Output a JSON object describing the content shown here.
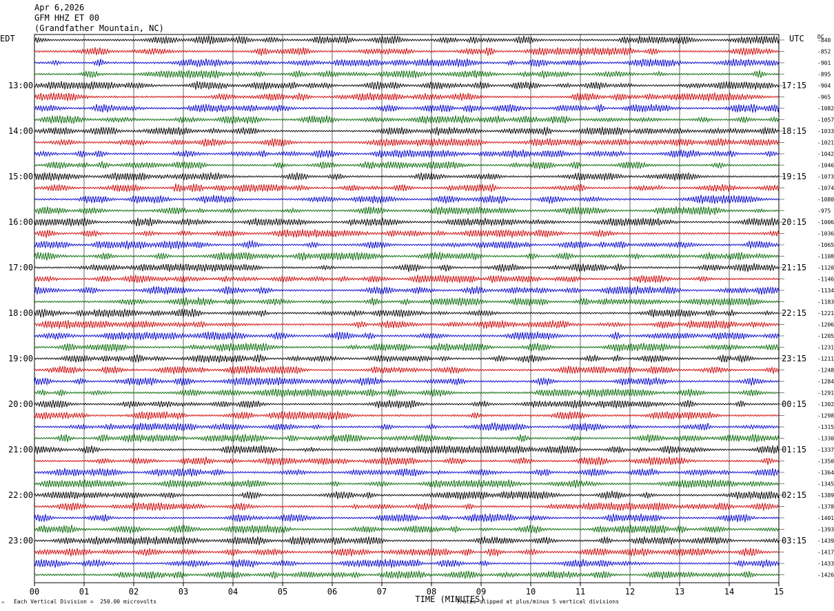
{
  "header": {
    "date": "Apr 6,2026",
    "station": "GFM HHZ ET 00",
    "location": "(Grandfather Mountain, NC)"
  },
  "labels": {
    "left_tz": "EDT",
    "right_tz": "UTC",
    "dc": "DC"
  },
  "footer": {
    "scale_note": "Each Vertical Division =  250.00 microvolts",
    "clip_note": "Traces clipped at plus/minus 5 vertical divisions",
    "mark": "^"
  },
  "chart_data": {
    "type": "line",
    "title": "",
    "xlabel": "TIME (MINUTES)",
    "xlim": [
      0,
      15
    ],
    "x_ticks": [
      "00",
      "01",
      "02",
      "03",
      "04",
      "05",
      "06",
      "07",
      "08",
      "09",
      "10",
      "11",
      "12",
      "13",
      "14",
      "15"
    ],
    "grid": true,
    "trace_colors": [
      "#000000",
      "#cc0000",
      "#0000cc",
      "#006600"
    ],
    "left_hour_labels": [
      "13:00",
      "14:00",
      "15:00",
      "16:00",
      "17:00",
      "18:00",
      "19:00",
      "20:00",
      "21:00",
      "22:00",
      "23:00"
    ],
    "right_hour_labels": [
      "17:15",
      "18:15",
      "19:15",
      "20:15",
      "21:15",
      "22:15",
      "23:15",
      "00:15",
      "01:15",
      "02:15",
      "03:15"
    ],
    "dc_offsets": [
      -840,
      -852,
      -901,
      -895,
      -904,
      -965,
      -1082,
      -1057,
      -1033,
      -1021,
      -1042,
      -1046,
      -1073,
      -1074,
      -1080,
      -975,
      -1006,
      -1036,
      -1065,
      -1108,
      -1120,
      -1146,
      -1134,
      -1183,
      -1221,
      -1206,
      -1205,
      -1231,
      -1211,
      -1248,
      -1284,
      -1291,
      -1302,
      -1298,
      -1315,
      -1330,
      -1337,
      -1350,
      -1364,
      -1345,
      -1389,
      -1378,
      -1401,
      -1393,
      -1439,
      -1417,
      -1433,
      -1426
    ],
    "event": {
      "row": 16,
      "minute_start": 11.6,
      "minute_end": 12.6
    }
  }
}
